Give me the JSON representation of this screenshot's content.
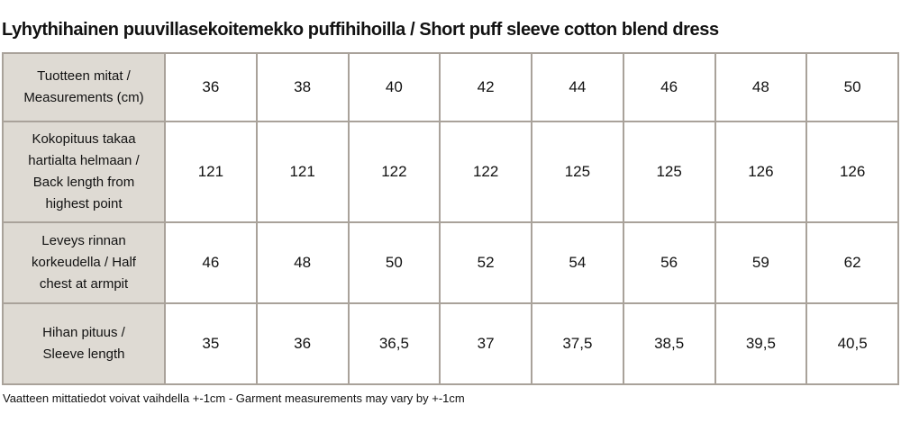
{
  "title": "Lyhythihainen puuvillasekoitemekko puffihihoilla / Short puff sleeve cotton blend dress",
  "table": {
    "header": {
      "label": "Tuotteen mitat /\nMeasurements (cm)",
      "sizes": [
        "36",
        "38",
        "40",
        "42",
        "44",
        "46",
        "48",
        "50"
      ]
    },
    "rows": [
      {
        "label": "Kokopituus takaa\nhartialta helmaan /\nBack length from\nhighest point",
        "values": [
          "121",
          "121",
          "122",
          "122",
          "125",
          "125",
          "126",
          "126"
        ]
      },
      {
        "label": "Leveys rinnan\nkorkeudella / Half\nchest at armpit",
        "values": [
          "46",
          "48",
          "50",
          "52",
          "54",
          "56",
          "59",
          "62"
        ]
      },
      {
        "label": "Hihan pituus /\nSleeve length",
        "values": [
          "35",
          "36",
          "36,5",
          "37",
          "37,5",
          "38,5",
          "39,5",
          "40,5"
        ]
      }
    ]
  },
  "footnote": "Vaatteen mittatiedot voivat vaihdella +-1cm - Garment measurements may vary by +-1cm",
  "colors": {
    "page_bg": "#ffffff",
    "header_bg": "#dedad3",
    "cell_bg": "#ffffff",
    "border": "#a9a29a",
    "text": "#121212"
  }
}
